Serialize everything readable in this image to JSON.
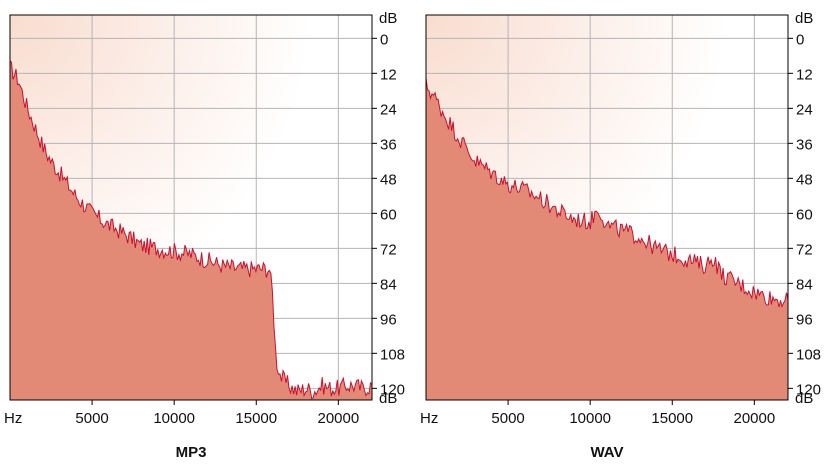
{
  "colors": {
    "fill": "#e38a76",
    "stroke": "#c8102e",
    "grid": "#b5b5b5",
    "frame": "#000000",
    "background_top_left": "#f9dccf",
    "background": "#ffffff"
  },
  "chart_data": [
    {
      "type": "area",
      "title": "MP3",
      "xlabel": "Hz",
      "ylabel": "dB",
      "xlim": [
        0,
        22050
      ],
      "ylim": [
        -124,
        8
      ],
      "x_ticks": [
        5000,
        10000,
        15000,
        20000
      ],
      "y_ticks": [
        0,
        -12,
        -24,
        -36,
        -48,
        -60,
        -72,
        -84,
        -96,
        -108,
        -120
      ],
      "y_tick_labels": [
        "0",
        "12",
        "24",
        "36",
        "48",
        "60",
        "72",
        "84",
        "96",
        "108",
        "120"
      ],
      "grid": true,
      "series": [
        {
          "x": [
            0,
            500,
            1000,
            1500,
            2000,
            2500,
            3000,
            3500,
            4000,
            5000,
            6000,
            7000,
            8000,
            9000,
            10000,
            11000,
            12000,
            13000,
            14000,
            15000,
            15800,
            16000,
            16200,
            16500,
            17000,
            17500,
            18000,
            18500,
            19000,
            19500,
            20000,
            20500,
            21000,
            21500,
            22050
          ],
          "y": [
            -10,
            -14,
            -23,
            -30,
            -37,
            -42,
            -46,
            -50,
            -54,
            -60,
            -64,
            -67,
            -71,
            -72,
            -73,
            -74,
            -76,
            -78,
            -79,
            -79,
            -79,
            -88,
            -110,
            -116,
            -119,
            -121,
            -120,
            -121,
            -119,
            -120,
            -120,
            -119,
            -119,
            -120,
            -119
          ]
        }
      ]
    },
    {
      "type": "area",
      "title": "WAV",
      "xlabel": "Hz",
      "ylabel": "dB",
      "xlim": [
        0,
        22050
      ],
      "ylim": [
        -124,
        8
      ],
      "x_ticks": [
        5000,
        10000,
        15000,
        20000
      ],
      "y_ticks": [
        0,
        -12,
        -24,
        -36,
        -48,
        -60,
        -72,
        -84,
        -96,
        -108,
        -120
      ],
      "y_tick_labels": [
        "0",
        "12",
        "24",
        "36",
        "48",
        "60",
        "72",
        "84",
        "96",
        "108",
        "120"
      ],
      "grid": true,
      "series": [
        {
          "x": [
            0,
            500,
            1000,
            2000,
            3000,
            4000,
            5000,
            6000,
            7000,
            8000,
            9000,
            10000,
            10500,
            11000,
            12000,
            13000,
            14000,
            15000,
            16000,
            17000,
            17500,
            18000,
            19000,
            20000,
            21000,
            22050
          ],
          "y": [
            -16,
            -20,
            -25,
            -34,
            -42,
            -46,
            -50,
            -52,
            -55,
            -59,
            -62,
            -63,
            -58,
            -64,
            -66,
            -68,
            -72,
            -74,
            -76,
            -78,
            -75,
            -81,
            -84,
            -87,
            -89,
            -90
          ]
        }
      ]
    }
  ]
}
